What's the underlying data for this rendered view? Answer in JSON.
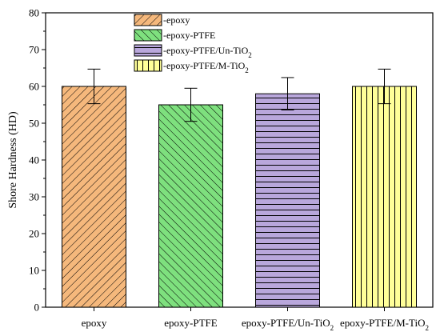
{
  "chart_data": {
    "type": "bar",
    "title": "",
    "xlabel": "",
    "ylabel": "Shore Hardness (HD)",
    "ylim": [
      0,
      80
    ],
    "yticks": [
      0,
      10,
      20,
      30,
      40,
      50,
      60,
      70,
      80
    ],
    "categories": [
      "epoxy",
      "epoxy-PTFE",
      "epoxy-PTFE/Un-TiO2",
      "epoxy-PTFE/M-TiO2"
    ],
    "values": [
      60,
      55,
      58,
      60
    ],
    "errors": [
      4.7,
      4.5,
      4.4,
      4.7
    ],
    "bar_colors": [
      "#f5b87c",
      "#7ee07e",
      "#b9a7dc",
      "#ffff99"
    ],
    "patterns": [
      "diag-right",
      "diag-left",
      "horizontal",
      "vertical"
    ],
    "legend": {
      "position": "top-center",
      "entries": [
        "-epoxy",
        "-epoxy-PTFE",
        "-epoxy-PTFE/Un-TiO2",
        "-epoxy-PTFE/M-TiO2"
      ]
    },
    "grid": false
  }
}
